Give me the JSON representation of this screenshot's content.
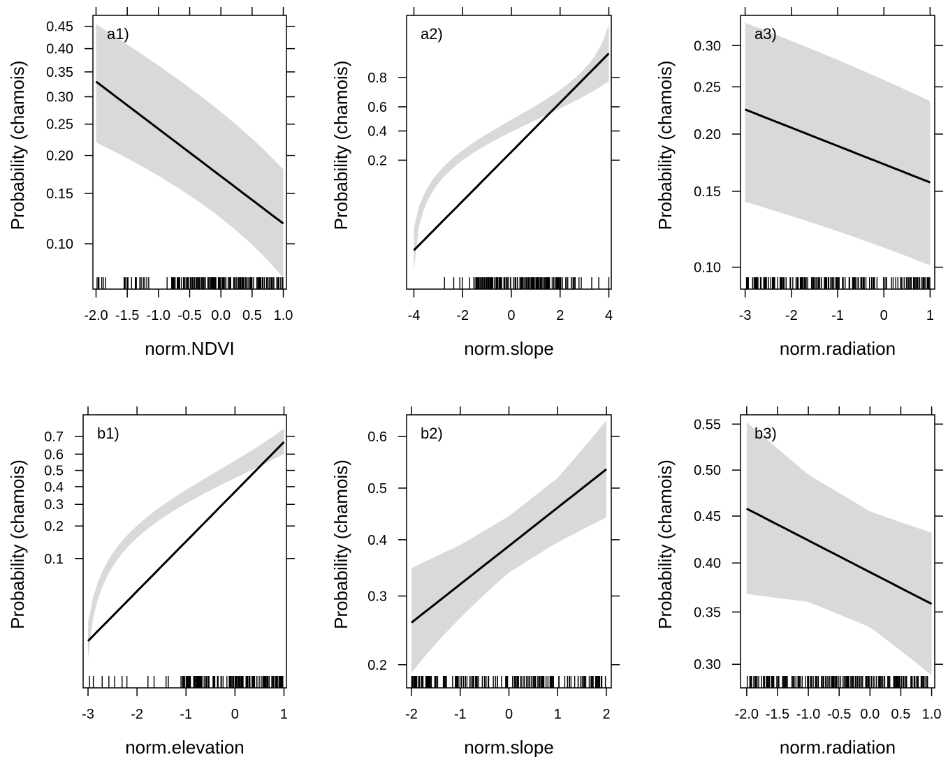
{
  "chart_data": [
    {
      "type": "line",
      "panel_label": "a1)",
      "xlabel": "norm.NDVI",
      "ylabel": "Probability (chamois)",
      "y_scale": "logit",
      "xlim": [
        -2.05,
        1.05
      ],
      "ylim": [
        0.076,
        0.475
      ],
      "x_ticks": [
        -2.0,
        -1.5,
        -1.0,
        -0.5,
        0.0,
        0.5,
        1.0
      ],
      "x_tick_labels": [
        "-2.0",
        "-1.5",
        "-1.0",
        "-0.5",
        "0.0",
        "0.5",
        "1.0"
      ],
      "y_ticks": [
        0.1,
        0.15,
        0.2,
        0.25,
        0.3,
        0.35,
        0.4,
        0.45
      ],
      "y_tick_labels": [
        "0.10",
        "0.15",
        "0.20",
        "0.25",
        "0.30",
        "0.35",
        "0.40",
        "0.45"
      ],
      "fit": {
        "x": [
          -2.0,
          1.0
        ],
        "y": [
          0.33,
          0.118
        ]
      },
      "ci_lower": {
        "x": [
          -2.0,
          1.0
        ],
        "y": [
          0.22,
          0.075
        ]
      },
      "ci_upper": {
        "x": [
          -2.0,
          1.0
        ],
        "y": [
          0.455,
          0.18
        ]
      },
      "rug": {
        "x_from": -2.0,
        "x_to": 1.0,
        "count": 170,
        "dense_from": -0.8
      }
    },
    {
      "type": "line",
      "panel_label": "a2)",
      "xlabel": "norm.slope",
      "ylabel": "Probability (chamois)",
      "y_scale": "logit",
      "xlim": [
        -4.3,
        4.1
      ],
      "ylim": [
        0.005,
        0.97
      ],
      "x_ticks": [
        -4,
        -2,
        0,
        2,
        4
      ],
      "x_tick_labels": [
        "-4",
        "-2",
        "0",
        "2",
        "4"
      ],
      "y_ticks": [
        0.2,
        0.4,
        0.6,
        0.8
      ],
      "y_tick_labels": [
        "0.2",
        "0.4",
        "0.6",
        "0.8"
      ],
      "fit": {
        "x": [
          -4,
          4
        ],
        "y": [
          0.012,
          0.9
        ]
      },
      "ci_lower": {
        "x": [
          -4,
          4
        ],
        "y": [
          0.006,
          0.78
        ]
      },
      "ci_upper": {
        "x": [
          -4,
          4
        ],
        "y": [
          0.025,
          0.96
        ]
      },
      "rug": {
        "x_from": -3.0,
        "x_to": 4.0,
        "count": 150,
        "dense_from": -1.6,
        "dense_to": 2.1
      }
    },
    {
      "type": "line",
      "panel_label": "a3)",
      "xlabel": "norm.radiation",
      "ylabel": "Probability (chamois)",
      "y_scale": "logit",
      "xlim": [
        -3.1,
        1.1
      ],
      "ylim": [
        0.095,
        0.34
      ],
      "x_ticks": [
        -3,
        -2,
        -1,
        0,
        1
      ],
      "x_tick_labels": [
        "-3",
        "-2",
        "-1",
        "0",
        "1"
      ],
      "y_ticks": [
        0.1,
        0.15,
        0.2,
        0.25,
        0.3
      ],
      "y_tick_labels": [
        "0.10",
        "0.15",
        "0.20",
        "0.25",
        "0.30"
      ],
      "fit": {
        "x": [
          -3,
          1
        ],
        "y": [
          0.225,
          0.157
        ]
      },
      "ci_lower": {
        "x": [
          -3,
          1
        ],
        "y": [
          0.142,
          0.101
        ]
      },
      "ci_upper": {
        "x": [
          -3,
          1
        ],
        "y": [
          0.33,
          0.234
        ]
      },
      "rug": {
        "x_from": -3.0,
        "x_to": 1.0,
        "count": 170
      }
    },
    {
      "type": "line",
      "panel_label": "b1)",
      "xlabel": "norm.elevation",
      "ylabel": "Probability (chamois)",
      "y_scale": "logit",
      "xlim": [
        -3.1,
        1.05
      ],
      "ylim": [
        0.006,
        0.8
      ],
      "x_ticks": [
        -3,
        -2,
        -1,
        0,
        1
      ],
      "x_tick_labels": [
        "-3",
        "-2",
        "-1",
        "0",
        "1"
      ],
      "y_ticks": [
        0.1,
        0.2,
        0.3,
        0.4,
        0.5,
        0.6,
        0.7
      ],
      "y_tick_labels": [
        "0.1",
        "0.2",
        "0.3",
        "0.4",
        "0.5",
        "0.6",
        "0.7"
      ],
      "fit": {
        "x": [
          -3,
          1
        ],
        "y": [
          0.014,
          0.67
        ]
      },
      "ci_lower": {
        "x": [
          -3,
          1
        ],
        "y": [
          0.009,
          0.6
        ]
      },
      "ci_upper": {
        "x": [
          -3,
          1
        ],
        "y": [
          0.022,
          0.74
        ]
      },
      "rug": {
        "x_from": -3.0,
        "x_to": 1.0,
        "count": 150,
        "dense_from": -1.1
      }
    },
    {
      "type": "line",
      "panel_label": "b2)",
      "xlabel": "norm.slope",
      "ylabel": "Probability (chamois)",
      "y_scale": "logit",
      "xlim": [
        -2.1,
        2.1
      ],
      "ylim": [
        0.187,
        0.64
      ],
      "x_ticks": [
        -2,
        -1,
        0,
        1,
        2
      ],
      "x_tick_labels": [
        "-2",
        "-1",
        "0",
        "1",
        "2"
      ],
      "y_ticks": [
        0.2,
        0.3,
        0.4,
        0.5,
        0.6
      ],
      "y_tick_labels": [
        "0.2",
        "0.3",
        "0.4",
        "0.5",
        "0.6"
      ],
      "fit": {
        "x": [
          -2,
          2
        ],
        "y": [
          0.258,
          0.537
        ]
      },
      "ci_lower": {
        "x": [
          -2,
          -1,
          0,
          1,
          2
        ],
        "y": [
          0.19,
          0.265,
          0.34,
          0.395,
          0.443
        ]
      },
      "ci_upper": {
        "x": [
          -2,
          -1,
          0,
          1,
          2
        ],
        "y": [
          0.348,
          0.39,
          0.445,
          0.52,
          0.63
        ]
      },
      "rug": {
        "x_from": -2.0,
        "x_to": 2.0,
        "count": 150
      }
    },
    {
      "type": "line",
      "panel_label": "b3)",
      "xlabel": "norm.radiation",
      "ylabel": "Probability (chamois)",
      "y_scale": "logit",
      "xlim": [
        -2.1,
        1.05
      ],
      "ylim": [
        0.29,
        0.56
      ],
      "x_ticks": [
        -2.0,
        -1.5,
        -1.0,
        -0.5,
        0.0,
        0.5,
        1.0
      ],
      "x_tick_labels": [
        "-2.0",
        "-1.5",
        "-1.0",
        "-0.5",
        "0.0",
        "0.5",
        "1.0"
      ],
      "y_ticks": [
        0.3,
        0.35,
        0.4,
        0.45,
        0.5,
        0.55
      ],
      "y_tick_labels": [
        "0.30",
        "0.35",
        "0.40",
        "0.45",
        "0.50",
        "0.55"
      ],
      "fit": {
        "x": [
          -2.0,
          1.0
        ],
        "y": [
          0.458,
          0.358
        ]
      },
      "ci_lower": {
        "x": [
          -2.0,
          -1.0,
          0.0,
          1.0
        ],
        "y": [
          0.368,
          0.36,
          0.335,
          0.29
        ]
      },
      "ci_upper": {
        "x": [
          -2.0,
          -1.0,
          0.0,
          1.0
        ],
        "y": [
          0.552,
          0.495,
          0.455,
          0.432
        ]
      },
      "rug": {
        "x_from": -2.0,
        "x_to": 1.0,
        "count": 170
      }
    }
  ]
}
